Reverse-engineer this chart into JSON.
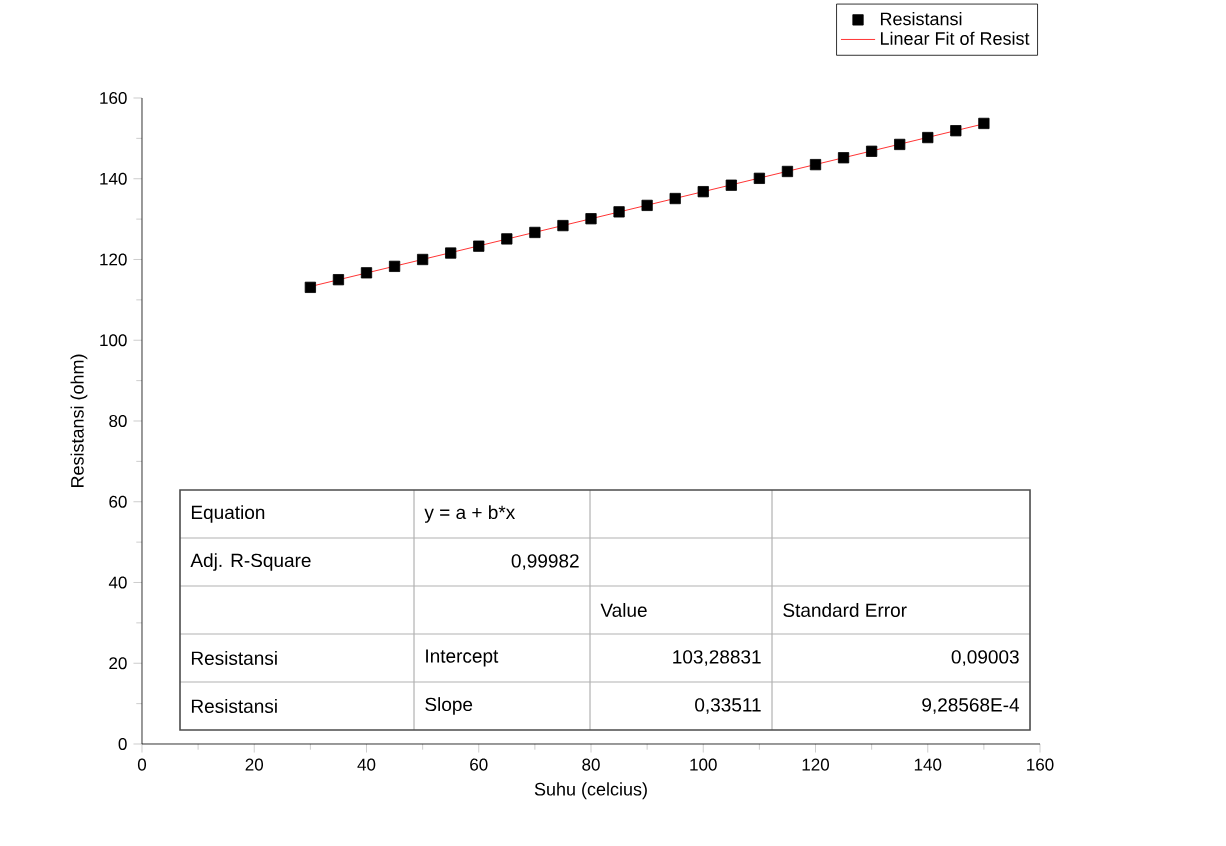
{
  "chart_data": {
    "type": "scatter",
    "xlabel": "Suhu (celcius)",
    "ylabel": "Resistansi (ohm)",
    "xlim": [
      0,
      160
    ],
    "xticks": [
      0,
      20,
      40,
      60,
      80,
      100,
      120,
      140,
      160
    ],
    "ylim": [
      0,
      160
    ],
    "yticks": [
      0,
      20,
      40,
      60,
      80,
      100,
      120,
      140,
      160
    ],
    "legend": "top right",
    "grid": false,
    "series": [
      {
        "name": "Resistansi",
        "marker": "square",
        "color": "#000000",
        "x": [
          30,
          35,
          40,
          45,
          50,
          55,
          60,
          65,
          70,
          75,
          80,
          85,
          90,
          95,
          100,
          105,
          110,
          115,
          120,
          125,
          130,
          135,
          140,
          145,
          150
        ],
        "values": [
          113.1,
          115.0,
          116.7,
          118.3,
          120.0,
          121.6,
          123.3,
          125.1,
          126.7,
          128.4,
          130.1,
          131.8,
          133.4,
          135.1,
          136.8,
          138.4,
          140.1,
          141.8,
          143.5,
          145.2,
          146.8,
          148.5,
          150.2,
          151.9,
          153.7
        ]
      },
      {
        "name": "Linear Fit of Resist",
        "type": "line",
        "marker": "none",
        "line_style": "solid",
        "color": "#ff0000",
        "x": [
          30,
          150
        ],
        "values": [
          113.3,
          153.6
        ]
      }
    ],
    "annotations": [
      "Equation",
      "y = a + b*x",
      "Adj. R-Square",
      "0,99982",
      "Value",
      "Standard Error",
      "Resistansi",
      "Intercept",
      "103,28831",
      "0,09003",
      "Resistansi",
      "Slope",
      "0,33511",
      "9,28568E-4"
    ]
  }
}
